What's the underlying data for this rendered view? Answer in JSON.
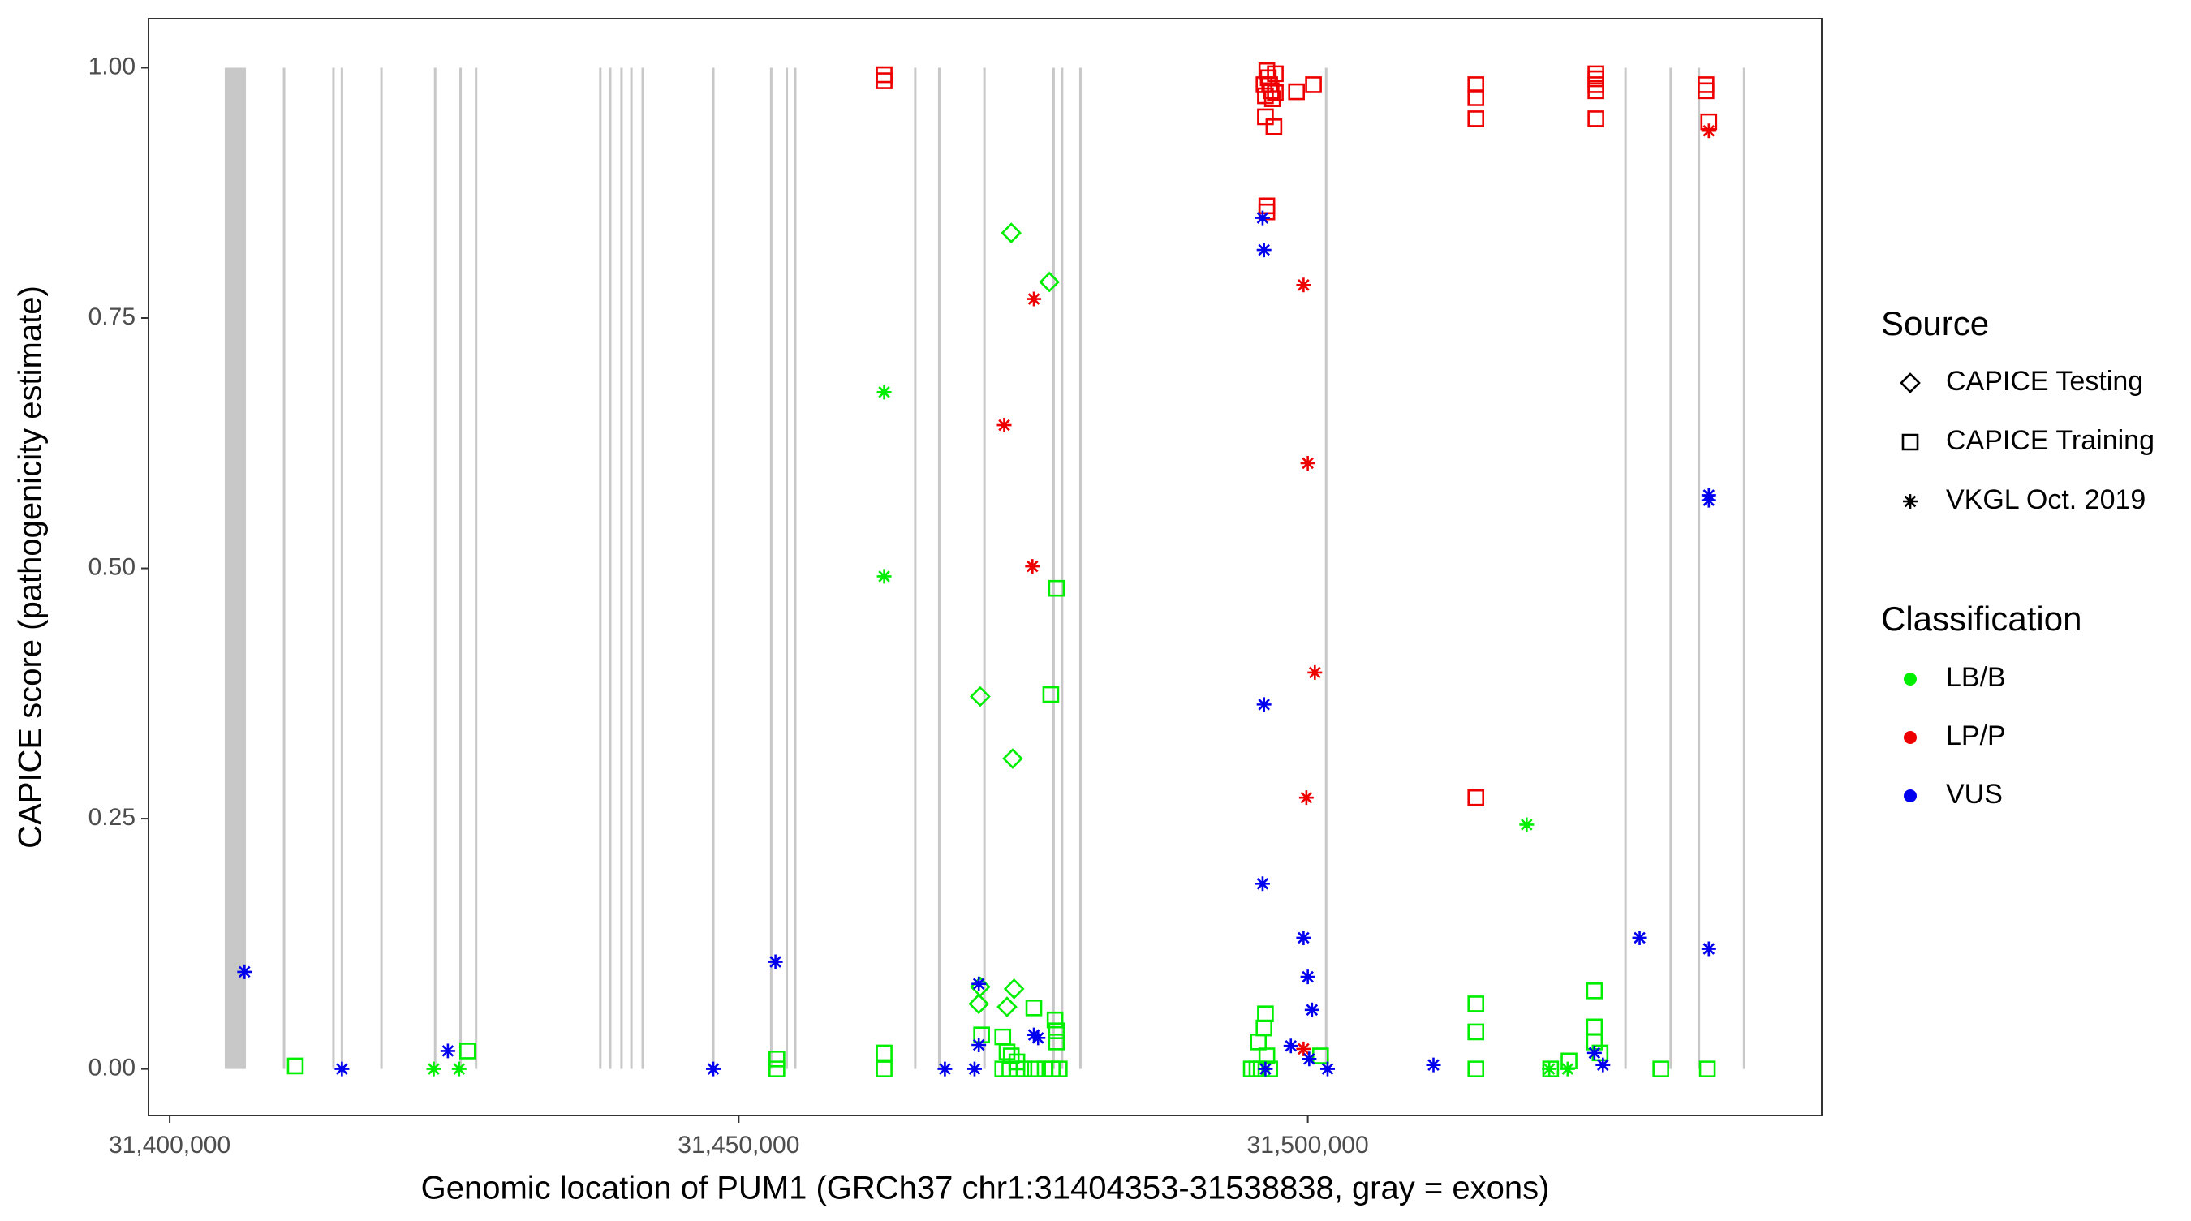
{
  "chart_data": {
    "type": "scatter",
    "xlabel": "Genomic location of PUM1 (GRCh37 chr1:31404353-31538838, gray = exons)",
    "ylabel": "CAPICE score (pathogenicity estimate)",
    "xlim": [
      31398140,
      31545160
    ],
    "ylim": [
      -0.0465,
      1.049
    ],
    "xticks": [
      {
        "value": 31400000,
        "label": "31,400,000"
      },
      {
        "value": 31450000,
        "label": "31,450,000"
      },
      {
        "value": 31500000,
        "label": "31,500,000"
      }
    ],
    "yticks": [
      {
        "value": 0,
        "label": "0.00"
      },
      {
        "value": 0.25,
        "label": "0.25"
      },
      {
        "value": 0.5,
        "label": "0.50"
      },
      {
        "value": 0.75,
        "label": "0.75"
      },
      {
        "value": 1,
        "label": "1.00"
      }
    ],
    "exon_color": "#c8c8c8",
    "exons": [
      [
        31404839,
        31406700
      ],
      [
        31409950,
        31410150
      ],
      [
        31414292,
        31414492
      ],
      [
        31415037,
        31415237
      ],
      [
        31418510,
        31418710
      ],
      [
        31423225,
        31423425
      ],
      [
        31425458,
        31425658
      ],
      [
        31426823,
        31427023
      ],
      [
        31437741,
        31437941
      ],
      [
        31438610,
        31438810
      ],
      [
        31439602,
        31439802
      ],
      [
        31440471,
        31440671
      ],
      [
        31441463,
        31441663
      ],
      [
        31447667,
        31447867
      ],
      [
        31452754,
        31452954
      ],
      [
        31454119,
        31454319
      ],
      [
        31454863,
        31455063
      ],
      [
        31465409,
        31465609
      ],
      [
        31467518,
        31467718
      ],
      [
        31471488,
        31471688
      ],
      [
        31477568,
        31477768
      ],
      [
        31478312,
        31478512
      ],
      [
        31479925,
        31480125
      ],
      [
        31501513,
        31501713
      ],
      [
        31527816,
        31528016
      ],
      [
        31531786,
        31531986
      ],
      [
        31534268,
        31534468
      ],
      [
        31538238,
        31538438
      ]
    ],
    "legend_source_title": "Source",
    "legend_class_title": "Classification",
    "sources": [
      {
        "name": "CAPICE Testing",
        "shape": "diamond"
      },
      {
        "name": "CAPICE Training",
        "shape": "square"
      },
      {
        "name": "VKGL Oct. 2019",
        "shape": "asterisk"
      }
    ],
    "classifications": [
      {
        "name": "LB/B",
        "color": "#00ee00"
      },
      {
        "name": "LP/P",
        "color": "#ee0000"
      },
      {
        "name": "VUS",
        "color": "#0000ee"
      }
    ],
    "series": [
      {
        "source": "CAPICE Testing",
        "classification": "LB/B",
        "x": [
          31473946,
          31477296,
          31471216,
          31474070,
          31474194,
          31471092,
          31473574,
          31471216
        ],
        "y": [
          0.835,
          0.786,
          0.372,
          0.31,
          0.08,
          0.065,
          0.062,
          0.082
        ]
      },
      {
        "source": "CAPICE Training",
        "classification": "LB/B",
        "x": [
          31411042,
          31426179,
          31453350,
          31453350,
          31462779,
          31462779,
          31477916,
          31477420,
          31475931,
          31477792,
          31477916,
          31477916,
          31473201,
          31473574,
          31473946,
          31474442,
          31473201,
          31473822,
          31474442,
          31475062,
          31476055,
          31476923,
          31477544,
          31478164,
          31471340,
          31496278,
          31496154,
          31495658,
          31496402,
          31495038,
          31495534,
          31495906,
          31496651,
          31501117,
          31514765,
          31514765,
          31514765,
          31525187,
          31525187,
          31525187,
          31525683,
          31522953,
          31521340,
          31531018,
          31535112
        ],
        "y": [
          0.003,
          0.018,
          0.01,
          0,
          0.016,
          0,
          0.48,
          0.374,
          0.061,
          0.049,
          0.038,
          0.027,
          0.032,
          0.017,
          0.013,
          0.007,
          0,
          0,
          0,
          0,
          0,
          0,
          0,
          0,
          0.034,
          0.055,
          0.041,
          0.027,
          0.013,
          0,
          0,
          0,
          0,
          0.013,
          0.065,
          0.037,
          0,
          0.078,
          0.042,
          0.027,
          0.016,
          0.008,
          0,
          0,
          0
        ]
      },
      {
        "source": "CAPICE Training",
        "classification": "LP/P",
        "x": [
          31462779,
          31462779,
          31496402,
          31496526,
          31496651,
          31496775,
          31496278,
          31496899,
          31497147,
          31496154,
          31497147,
          31496278,
          31497023,
          31499008,
          31500497,
          31496402,
          31496402,
          31514765,
          31514765,
          31514765,
          31514765,
          31525311,
          31525311,
          31525311,
          31525311,
          31525311,
          31534988,
          31534988,
          31535236
        ],
        "y": [
          0.993,
          0.987,
          0.997,
          0.99,
          0.983,
          0.977,
          0.972,
          0.969,
          0.975,
          0.983,
          0.994,
          0.951,
          0.941,
          0.976,
          0.983,
          0.862,
          0.856,
          0.983,
          0.97,
          0.949,
          0.271,
          0.994,
          0.989,
          0.983,
          0.977,
          0.949,
          0.983,
          0.977,
          0.946
        ]
      },
      {
        "source": "VKGL Oct. 2019",
        "classification": "LB/B",
        "x": [
          31423201,
          31425434,
          31462779,
          31462779,
          31519231,
          31521216,
          31522829
        ],
        "y": [
          0,
          0,
          0.676,
          0.492,
          0.244,
          0,
          0
        ]
      },
      {
        "source": "VKGL Oct. 2019",
        "classification": "LP/P",
        "x": [
          31475931,
          31473325,
          31475807,
          31499628,
          31500000,
          31500621,
          31499876,
          31499628,
          31535236
        ],
        "y": [
          0.769,
          0.643,
          0.502,
          0.783,
          0.605,
          0.396,
          0.271,
          0.02,
          0.937
        ]
      },
      {
        "source": "VKGL Oct. 2019",
        "classification": "VUS",
        "x": [
          31406576,
          31415137,
          31424442,
          31447767,
          31453226,
          31468114,
          31471092,
          31471092,
          31470720,
          31475931,
          31476303,
          31496030,
          31496154,
          31496154,
          31496030,
          31496278,
          31499628,
          31500000,
          31500373,
          31498512,
          31500124,
          31501737,
          31511043,
          31525187,
          31525931,
          31529157,
          31535236,
          31535236,
          31535236
        ],
        "y": [
          0.097,
          0,
          0.018,
          0,
          0.107,
          0,
          0.085,
          0.024,
          0,
          0.034,
          0.031,
          0.85,
          0.818,
          0.364,
          0.185,
          0,
          0.131,
          0.092,
          0.059,
          0.023,
          0.01,
          0,
          0.004,
          0.016,
          0.004,
          0.131,
          0.573,
          0.568,
          0.12
        ]
      }
    ]
  }
}
